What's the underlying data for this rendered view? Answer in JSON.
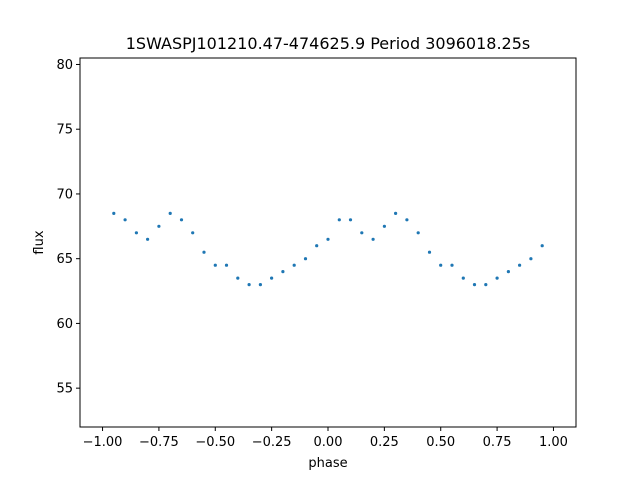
{
  "chart_data": {
    "type": "scatter",
    "title": "1SWASPJ101210.47-474625.9 Period 3096018.25s",
    "xlabel": "phase",
    "ylabel": "flux",
    "xlim": [
      -1.1,
      1.1
    ],
    "ylim": [
      52.0,
      80.5
    ],
    "x_ticks": [
      -1.0,
      -0.75,
      -0.5,
      -0.25,
      0.0,
      0.25,
      0.5,
      0.75,
      1.0
    ],
    "x_tick_labels": [
      "−1.00",
      "−0.75",
      "−0.50",
      "−0.25",
      "0.00",
      "0.25",
      "0.50",
      "0.75",
      "1.00"
    ],
    "y_ticks": [
      55,
      60,
      65,
      70,
      75,
      80
    ],
    "y_tick_labels": [
      "55",
      "60",
      "65",
      "70",
      "75",
      "80"
    ],
    "grid": false,
    "legend": "none",
    "point_color": "#1f77b4",
    "series": [
      {
        "x": [
          -0.95,
          -0.9,
          -0.85,
          -0.8,
          -0.75,
          -0.7,
          -0.65,
          -0.6,
          -0.55,
          -0.5,
          -0.45,
          -0.4,
          -0.35,
          -0.3,
          -0.25,
          -0.2,
          -0.15,
          -0.1,
          -0.05,
          0.0,
          0.05,
          0.1,
          0.15,
          0.2,
          0.25,
          0.3,
          0.35,
          0.4,
          0.45,
          0.5,
          0.55,
          0.6,
          0.65,
          0.7,
          0.75,
          0.8,
          0.85,
          0.9,
          0.95
        ],
        "y": [
          68.5,
          68.0,
          67.0,
          66.5,
          67.5,
          68.5,
          68.0,
          67.0,
          65.5,
          64.5,
          64.5,
          63.5,
          63.0,
          63.0,
          63.5,
          64.0,
          64.5,
          65.0,
          66.0,
          66.5,
          68.0,
          68.0,
          67.0,
          66.5,
          67.5,
          68.5,
          68.0,
          67.0,
          65.5,
          64.5,
          64.5,
          63.5,
          63.0,
          63.0,
          63.5,
          64.0,
          64.5,
          65.0,
          66.0
        ]
      }
    ]
  }
}
